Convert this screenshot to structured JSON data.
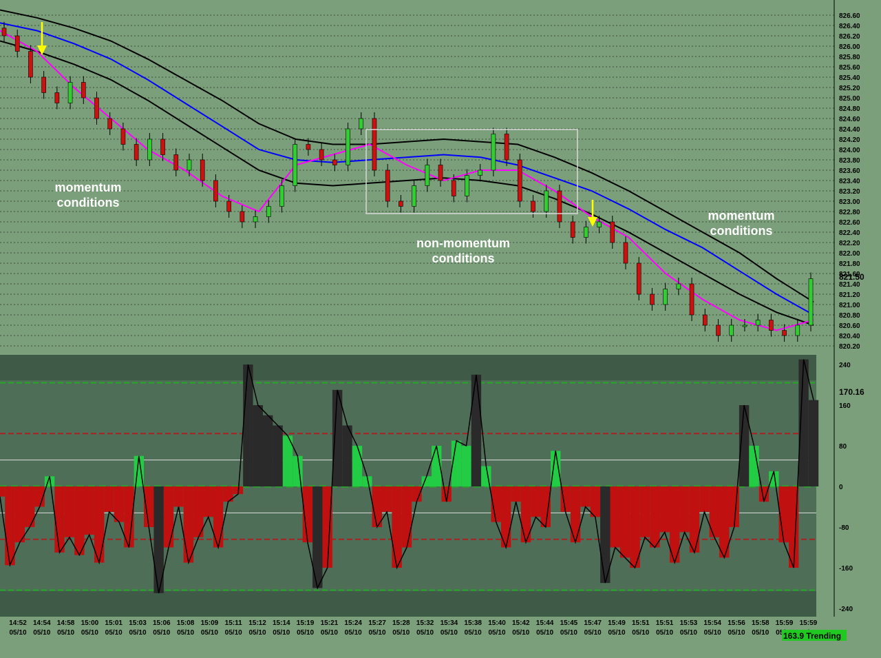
{
  "chart_data": [
    {
      "type": "candlestick",
      "panel": "price",
      "ylim": [
        820.2,
        826.8
      ],
      "y_ticks": [
        "826.60",
        "826.40",
        "826.20",
        "826.00",
        "825.80",
        "825.60",
        "825.40",
        "825.20",
        "825.00",
        "824.80",
        "824.60",
        "824.40",
        "824.20",
        "824.00",
        "823.80",
        "823.60",
        "823.40",
        "823.20",
        "823.00",
        "822.80",
        "822.60",
        "822.40",
        "822.20",
        "822.00",
        "821.80",
        "821.60",
        "821.40",
        "821.20",
        "821.00",
        "820.80",
        "820.60",
        "820.40",
        "820.20"
      ],
      "last_price_label": "821.50",
      "grid": true,
      "overlays": [
        {
          "name": "upper band",
          "color": "#000000",
          "values": [
            826.7,
            826.55,
            826.35,
            826.1,
            825.75,
            825.35,
            824.95,
            824.5,
            824.2,
            824.1,
            824.1,
            824.15,
            824.2,
            824.15,
            824.1,
            823.85,
            823.55,
            823.2,
            822.8,
            822.4,
            822.0,
            821.5,
            821.05
          ]
        },
        {
          "name": "mid line",
          "color": "#0000ff",
          "values": [
            826.45,
            826.3,
            826.05,
            825.75,
            825.35,
            824.9,
            824.45,
            824.0,
            823.8,
            823.75,
            823.8,
            823.85,
            823.9,
            823.85,
            823.7,
            823.45,
            823.2,
            822.85,
            822.45,
            822.1,
            821.65,
            821.2,
            820.8
          ]
        },
        {
          "name": "lower band",
          "color": "#000000",
          "values": [
            826.1,
            825.9,
            825.65,
            825.35,
            824.95,
            824.5,
            824.05,
            823.6,
            823.35,
            823.3,
            823.35,
            823.4,
            823.45,
            823.4,
            823.3,
            823.05,
            822.75,
            822.4,
            822.0,
            821.6,
            821.2,
            820.85,
            820.6
          ]
        },
        {
          "name": "fast average",
          "color": "#ff00ff",
          "values": [
            826.3,
            825.9,
            825.2,
            824.6,
            824.0,
            823.6,
            823.1,
            822.8,
            823.7,
            823.9,
            824.1,
            823.7,
            823.4,
            823.6,
            823.6,
            823.2,
            822.7,
            822.3,
            821.6,
            821.1,
            820.7,
            820.5,
            820.7
          ]
        }
      ],
      "series": [
        {
          "name": "close",
          "values": [
            826.2,
            825.9,
            825.4,
            825.1,
            824.9,
            825.3,
            825.0,
            824.6,
            824.4,
            824.1,
            823.8,
            824.2,
            823.9,
            823.6,
            823.8,
            823.4,
            823.0,
            822.8,
            822.6,
            822.7,
            822.9,
            823.3,
            824.1,
            824.0,
            823.8,
            823.7,
            824.4,
            824.6,
            823.6,
            823.0,
            822.9,
            823.3,
            823.7,
            823.4,
            823.1,
            823.5,
            823.6,
            824.3,
            823.8,
            823.0,
            822.8,
            823.2,
            822.6,
            822.3,
            822.5,
            822.6,
            822.2,
            821.8,
            821.2,
            821.0,
            821.3,
            821.4,
            820.8,
            820.6,
            820.4,
            820.6,
            820.6,
            820.7,
            820.5,
            820.4,
            820.6,
            821.5
          ]
        }
      ],
      "annotations": [
        {
          "text": "momentum",
          "text2": "conditions"
        },
        {
          "text": "non-momentum",
          "text2": "conditions"
        },
        {
          "text": "momentum",
          "text2": "conditions"
        }
      ]
    },
    {
      "type": "histogram",
      "panel": "indicator",
      "ylim": [
        -240,
        260
      ],
      "y_ticks": [
        "240",
        "160",
        "80",
        "0",
        "-80",
        "-160",
        "-240"
      ],
      "reference_lines": [
        204,
        104,
        52,
        -52,
        -104,
        -204
      ],
      "last_value_label": "170.16",
      "series": [
        {
          "name": "indicator",
          "values": [
            -20,
            -155,
            -110,
            -80,
            -40,
            20,
            -130,
            -100,
            -135,
            -95,
            -150,
            -50,
            -70,
            -120,
            60,
            -80,
            -210,
            -120,
            -40,
            -150,
            -100,
            -60,
            -120,
            -30,
            -15,
            240,
            160,
            140,
            120,
            100,
            60,
            -110,
            -200,
            -160,
            190,
            120,
            80,
            20,
            -80,
            -50,
            -160,
            -120,
            -30,
            20,
            80,
            -30,
            90,
            80,
            220,
            40,
            -70,
            -120,
            -30,
            -110,
            -60,
            -80,
            70,
            -50,
            -110,
            -40,
            -60,
            -190,
            -120,
            -140,
            -160,
            -100,
            -120,
            -90,
            -150,
            -90,
            -130,
            -50,
            -100,
            -140,
            -80,
            160,
            80,
            -30,
            30,
            -110,
            -160,
            250,
            170
          ]
        }
      ],
      "status_label": "163.9 Trending"
    }
  ],
  "x_axis": {
    "time_labels": [
      "14:52",
      "14:54",
      "14:58",
      "15:00",
      "15:01",
      "15:03",
      "15:06",
      "15:08",
      "15:09",
      "15:11",
      "15:12",
      "15:14",
      "15:19",
      "15:21",
      "15:24",
      "15:27",
      "15:28",
      "15:32",
      "15:34",
      "15:38",
      "15:40",
      "15:42",
      "15:44",
      "15:45",
      "15:47",
      "15:49",
      "15:51",
      "15:51",
      "15:53",
      "15:54",
      "15:56",
      "15:58",
      "15:59",
      "15:59"
    ],
    "date_label": "05/10"
  }
}
